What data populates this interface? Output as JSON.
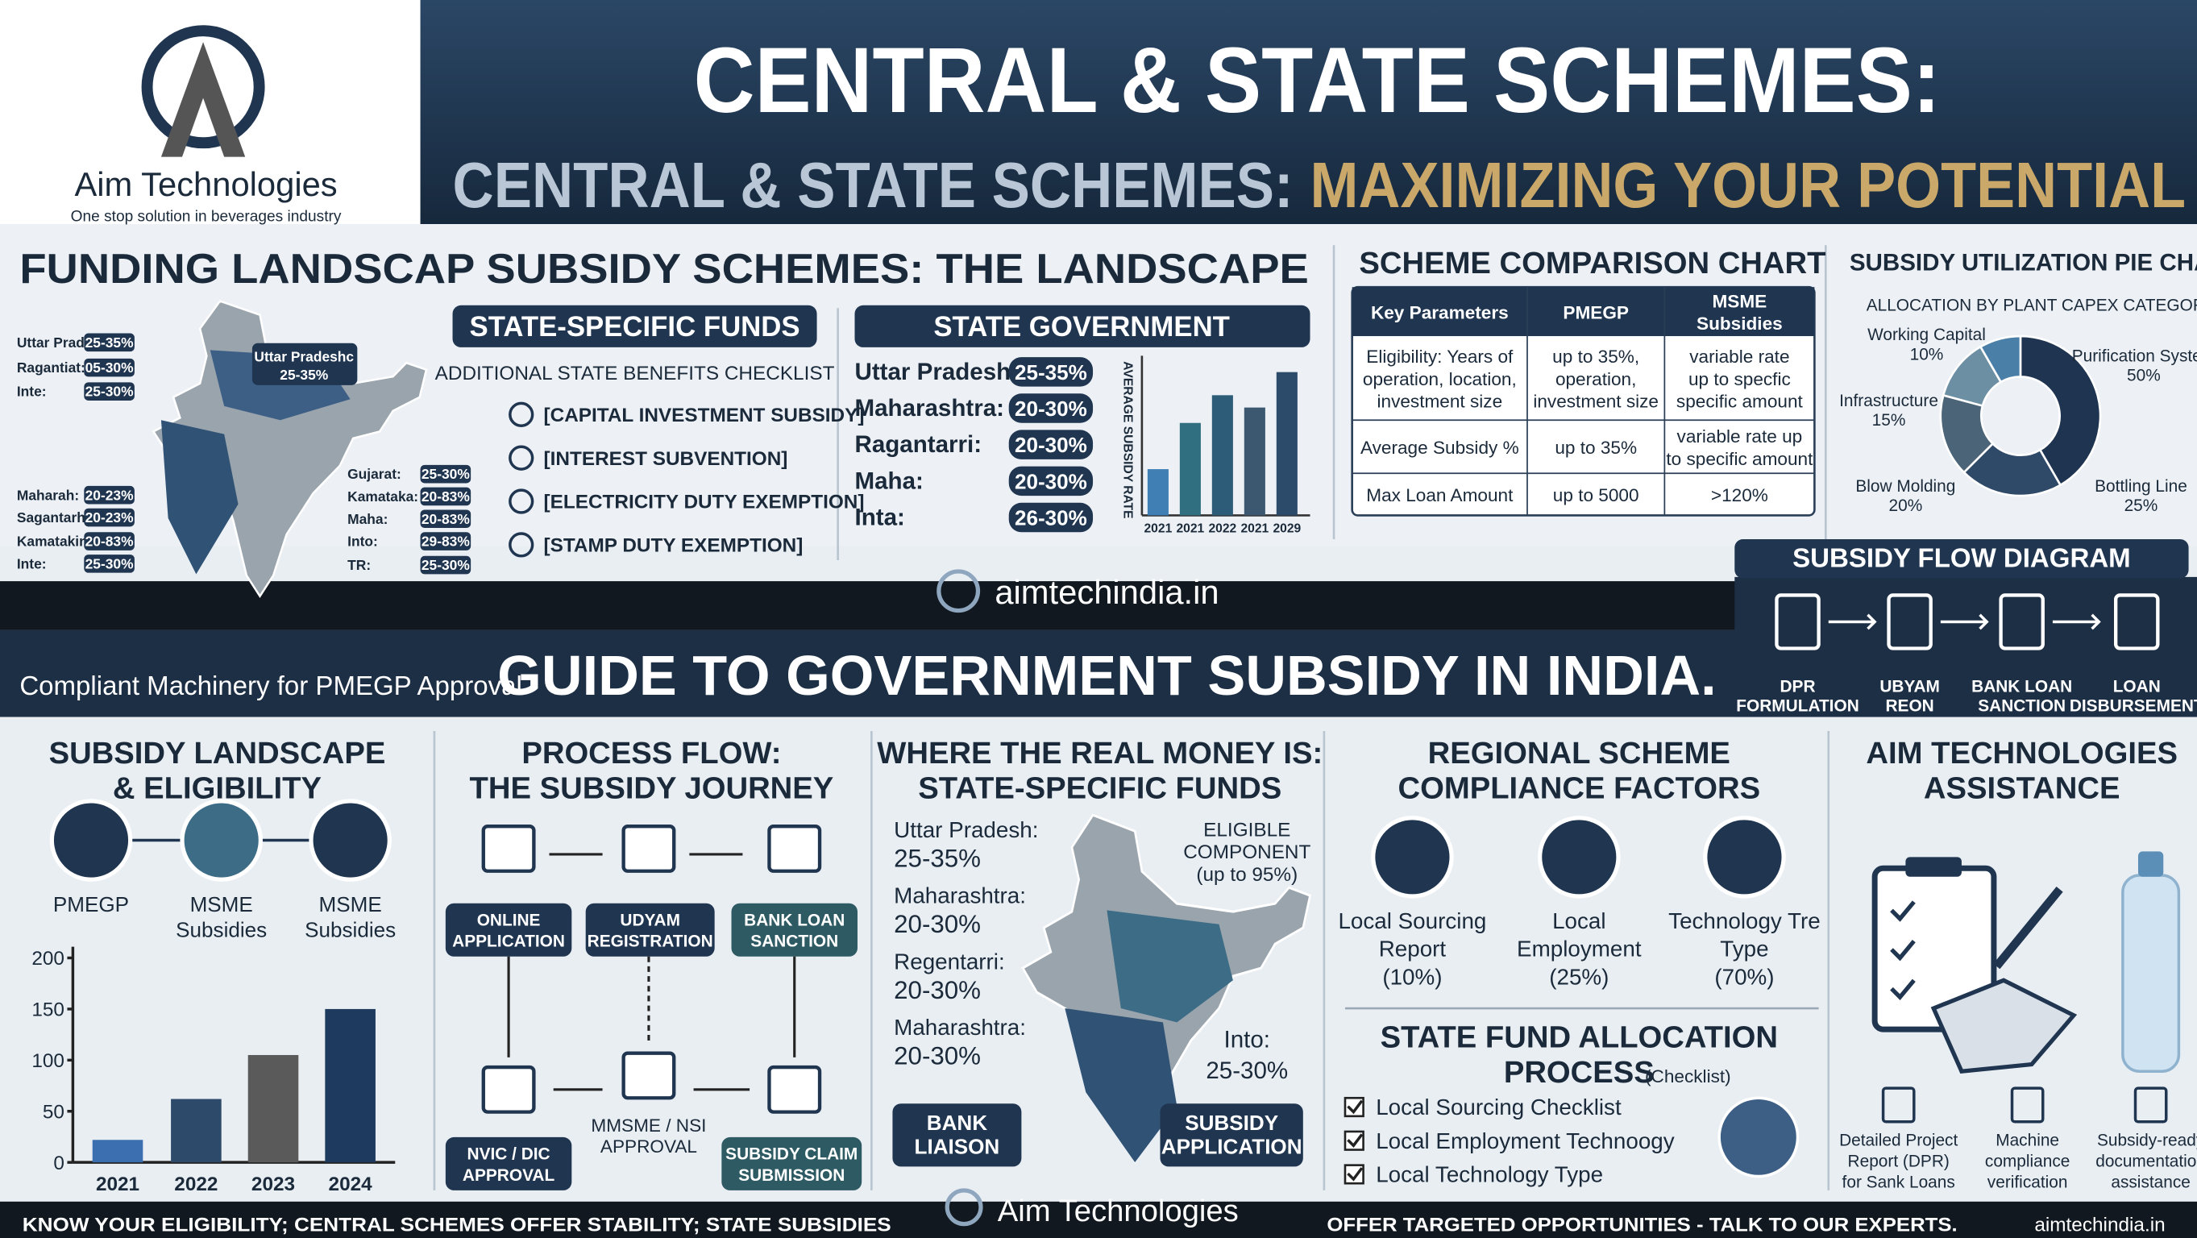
{
  "brand": {
    "name": "Aim Technologies",
    "tagline": "One stop solution in beverages industry"
  },
  "header": {
    "title": "CENTRAL & STATE SCHEMES:",
    "subtitle_a": "CENTRAL & STATE SCHEMES:",
    "subtitle_b": "MAXIMIZING YOUR POTENTIAL"
  },
  "landscape": {
    "title": "FUNDING LANDSCAP SUBSIDY SCHEMES: THE LANDSCAPE",
    "map_callout": [
      "Uttar Pradeshc",
      "25-35%"
    ],
    "left_states": [
      [
        "Uttar Prad:",
        "25-35%"
      ],
      [
        "Ragantiat:",
        "05-30%"
      ],
      [
        "Inte:",
        "25-30%"
      ],
      [
        "Maharah:",
        "20-23%"
      ],
      [
        "Sagantarh:",
        "20-23%"
      ],
      [
        "Kamatakin:",
        "20-83%"
      ],
      [
        "Inte:",
        "25-30%"
      ]
    ],
    "right_states": [
      [
        "Gujarat:",
        "25-30%"
      ],
      [
        "Kamataka:",
        "20-83%"
      ],
      [
        "Maha:",
        "20-83%"
      ],
      [
        "Into:",
        "29-83%"
      ],
      [
        "TR:",
        "25-30%"
      ]
    ]
  },
  "state_funds": {
    "title": "STATE-SPECIFIC FUNDS",
    "subtitle": "ADDITIONAL STATE BENEFITS CHECKLIST",
    "items": [
      "[CAPITAL INVESTMENT SUBSIDY]",
      "[INTEREST SUBVENTION]",
      "[ELECTRICITY DUTY EXEMPTION]",
      "[STAMP DUTY EXEMPTION]"
    ]
  },
  "state_government": {
    "title": "STATE GOVERNMENT",
    "states": [
      [
        "Uttar Pradesh:",
        "25-35%"
      ],
      [
        "Maharashtra:",
        "20-30%"
      ],
      [
        "Ragantarri:",
        "20-30%"
      ],
      [
        "Maha:",
        "20-30%"
      ],
      [
        "Inta:",
        "26-30%"
      ]
    ],
    "chart": {
      "type": "bar",
      "y_label": "AVERAGE SUBSIDY RATE",
      "categories": [
        "2021",
        "2021",
        "2022",
        "2021",
        "2029"
      ],
      "values": [
        30,
        60,
        78,
        70,
        93
      ],
      "ylim": [
        0,
        100
      ],
      "colors": [
        "#3f7fb3",
        "#2f6f80",
        "#2d5c78",
        "#3b5870",
        "#2c4a6a"
      ]
    }
  },
  "comparison": {
    "title": "SCHEME COMPARISON CHART",
    "header": [
      [
        "Key Parameters"
      ],
      [
        "PMEGP"
      ],
      [
        "MSME",
        "Subsidies"
      ]
    ],
    "rows": [
      [
        [
          "Eligibility: Years of",
          "operation, location,",
          "investment size"
        ],
        [
          "up to 35%,",
          "operation,",
          "investment size"
        ],
        [
          "variable rate",
          "up to specfic",
          "specific amount"
        ]
      ],
      [
        [
          "Average Subsidy %"
        ],
        [
          "up to 35%"
        ],
        [
          "variable rate up",
          "to specific amount"
        ]
      ],
      [
        [
          "Max Loan Amount"
        ],
        [
          "up to 5000"
        ],
        [
          ">120%"
        ]
      ]
    ]
  },
  "pie": {
    "title": "SUBSIDY UTILIZATION PIE CHART",
    "subtitle": "ALLOCATION BY PLANT CAPEX CATEGORY",
    "chart": {
      "type": "pie",
      "categories": [
        "Purification System",
        "Bottling Line",
        "Blow Molding",
        "Infrastructure",
        "Working Capital"
      ],
      "values": [
        50,
        25,
        20,
        15,
        10
      ],
      "value_labels": [
        "50%",
        "25%",
        "20%",
        "15%",
        "10%"
      ],
      "colors": [
        "#1e3450",
        "#2f4a68",
        "#4b6478",
        "#6d8fa3",
        "#4a7fa8"
      ]
    }
  },
  "band": {
    "site": "aimtechindia.in",
    "left": "Compliant Machinery for PMEGP Approval",
    "headline": "GUIDE TO GOVERNMENT SUBSIDY IN INDIA."
  },
  "flow": {
    "title": "SUBSIDY FLOW DIAGRAM",
    "steps": [
      [
        "DPR",
        "FORMULATION"
      ],
      [
        "UBYAM",
        "REON"
      ],
      [
        "BANK LOAN",
        "SANCTION"
      ],
      [
        "LOAN",
        "DISBURSEMENT"
      ]
    ]
  },
  "eligibility": {
    "title": [
      "SUBSIDY LANDSCAPE",
      "& ELIGIBILITY"
    ],
    "schemes": [
      [
        "PMEGP"
      ],
      [
        "MSME",
        "Subsidies"
      ],
      [
        "MSME",
        "Subsidies"
      ]
    ],
    "chart": {
      "type": "bar",
      "categories": [
        "2021",
        "2022",
        "2023",
        "2024"
      ],
      "values": [
        22,
        62,
        105,
        150
      ],
      "ylim": [
        0,
        200
      ],
      "yticks": [
        0,
        50,
        100,
        150,
        200
      ],
      "colors": [
        "#3b6fb0",
        "#2d4a6a",
        "#5a5a5a",
        "#1e3a5f"
      ]
    }
  },
  "process": {
    "title": [
      "PROCESS FLOW:",
      "THE SUBSIDY JOURNEY"
    ],
    "nodes": [
      [
        "ONLINE",
        "APPLICATION"
      ],
      [
        "UDYAM",
        "REGISTRATION"
      ],
      [
        "BANK LOAN",
        "SANCTION"
      ],
      [
        "NVIC / DIC",
        "APPROVAL"
      ],
      [
        "MMSME / NSI",
        "APPROVAL"
      ],
      [
        "SUBSIDY CLAIM",
        "SUBMISSION"
      ]
    ]
  },
  "money": {
    "title": [
      "WHERE THE REAL MONEY IS:",
      "STATE-SPECIFIC FUNDS"
    ],
    "states": [
      [
        "Uttar Pradesh:",
        "25-35%"
      ],
      [
        "Maharashtra:",
        "20-30%"
      ],
      [
        "Regentarri:",
        "20-30%"
      ],
      [
        "Maharashtra:",
        "20-30%"
      ]
    ],
    "eligible": [
      "ELIGIBLE",
      "COMPONENT",
      "(up to 95%)"
    ],
    "callout": [
      "Into:",
      "25-30%"
    ],
    "buttons": [
      [
        "BANK",
        "LIAISON"
      ],
      [
        "SUBSIDY",
        "APPLICATION"
      ]
    ]
  },
  "compliance": {
    "title": [
      "REGIONAL SCHEME",
      "COMPLIANCE FACTORS"
    ],
    "factors": [
      [
        "Local Sourcing",
        "Report",
        "(10%)"
      ],
      [
        "Local",
        "Employment",
        "(25%)"
      ],
      [
        "Technology Tre",
        "Type",
        "(70%)"
      ]
    ],
    "allocation_title": [
      "STATE FUND ALLOCATION",
      "PROCESS"
    ],
    "allocation_note": "(Checklist)",
    "checklist": [
      "Local Sourcing Checklist",
      "Local Employment Technoogy",
      "Local Technology Type"
    ]
  },
  "assistance": {
    "title": [
      "AIM TECHNOLOGIES",
      "ASSISTANCE"
    ],
    "items": [
      [
        "Detailed Project",
        "Report (DPR)",
        "for Sank Loans"
      ],
      [
        "Machine",
        "compliance",
        "verification"
      ],
      [
        "Subsidy-ready",
        "documentation",
        "assistance"
      ]
    ]
  },
  "footer": {
    "left": "KNOW YOUR ELIGIBILITY; CENTRAL SCHEMES OFFER STABILITY; STATE SUBSIDIES",
    "center": "Aim Technologies",
    "right": "OFFER TARGETED OPPORTUNITIES - TALK TO OUR EXPERTS.",
    "site": "aimtechindia.in"
  }
}
